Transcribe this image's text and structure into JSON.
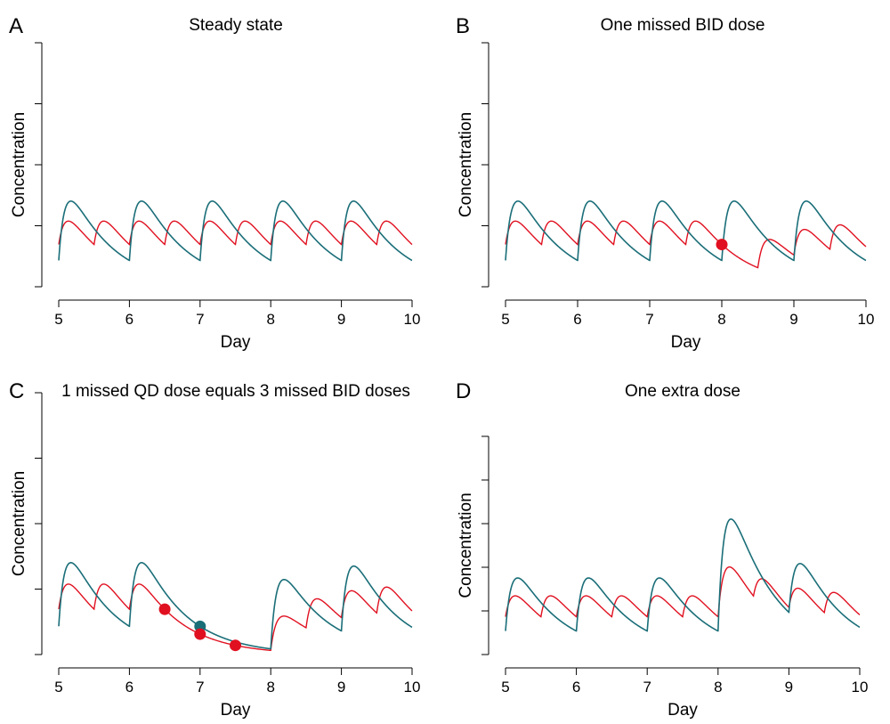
{
  "colors": {
    "qd": "#1a6e78",
    "bid": "#e01020",
    "axis": "#000000"
  },
  "chart_data": [
    {
      "type": "line",
      "panel_letter": "A",
      "title": "Steady state",
      "xlabel": "Day",
      "ylabel": "Concentration",
      "xlim": [
        5,
        10
      ],
      "x_ticks": [
        5,
        6,
        7,
        8,
        9,
        10
      ],
      "y_tick_count": 5,
      "missed_qd": [],
      "missed_bid": [],
      "extra_dose_day": null,
      "markers": []
    },
    {
      "type": "line",
      "panel_letter": "B",
      "title": "One missed BID dose",
      "xlabel": "Day",
      "ylabel": "Concentration",
      "xlim": [
        5,
        10
      ],
      "x_ticks": [
        5,
        6,
        7,
        8,
        9,
        10
      ],
      "y_tick_count": 5,
      "missed_qd": [],
      "missed_bid": [
        8.0
      ],
      "extra_dose_day": null,
      "markers": [
        {
          "series": "bid",
          "x": 8.0
        }
      ]
    },
    {
      "type": "line",
      "panel_letter": "C",
      "title": "1 missed QD dose equals 3 missed BID doses",
      "xlabel": "Day",
      "ylabel": "Concentration",
      "xlim": [
        5,
        10
      ],
      "x_ticks": [
        5,
        6,
        7,
        8,
        9,
        10
      ],
      "y_tick_count": 5,
      "missed_qd": [
        7.0
      ],
      "missed_bid": [
        6.5,
        7.0,
        7.5
      ],
      "extra_dose_day": null,
      "markers": [
        {
          "series": "bid",
          "x": 6.5
        },
        {
          "series": "qd",
          "x": 7.0
        },
        {
          "series": "bid",
          "x": 7.0
        },
        {
          "series": "bid",
          "x": 7.5
        }
      ]
    },
    {
      "type": "line",
      "panel_letter": "D",
      "title": "One extra dose",
      "xlabel": "Day",
      "ylabel": "Concentration",
      "xlim": [
        5,
        10
      ],
      "x_ticks": [
        5,
        6,
        7,
        8,
        9,
        10
      ],
      "y_tick_count": 6,
      "missed_qd": [],
      "missed_bid": [],
      "extra_dose_day": 8.0,
      "markers": []
    }
  ]
}
